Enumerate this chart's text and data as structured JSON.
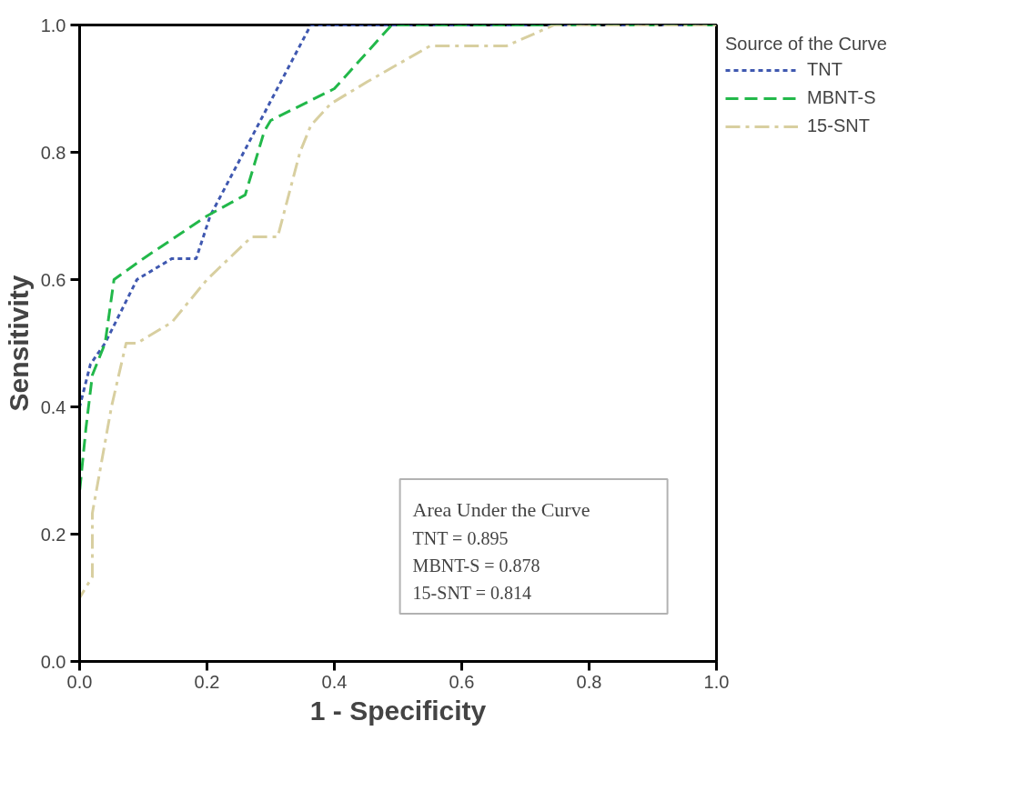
{
  "chart_data": {
    "type": "line",
    "xlabel": "1 - Specificity",
    "ylabel": "Sensitivity",
    "legend_title": "Source of the Curve",
    "xlim": [
      0,
      1
    ],
    "ylim": [
      0,
      1
    ],
    "xticks": [
      {
        "value": 0,
        "label": "0.0"
      },
      {
        "value": 0.2,
        "label": "0.2"
      },
      {
        "value": 0.4,
        "label": "0.4"
      },
      {
        "value": 0.6,
        "label": "0.6"
      },
      {
        "value": 0.8,
        "label": "0.8"
      },
      {
        "value": 1,
        "label": "1.0"
      }
    ],
    "yticks": [
      {
        "value": 0,
        "label": "0.0"
      },
      {
        "value": 0.2,
        "label": "0.2"
      },
      {
        "value": 0.4,
        "label": "0.4"
      },
      {
        "value": 0.6,
        "label": "0.6"
      },
      {
        "value": 0.8,
        "label": "0.8"
      },
      {
        "value": 1,
        "label": "1.0"
      }
    ],
    "grid": false,
    "legend": "right",
    "marker": "none",
    "series": [
      {
        "name": "TNT",
        "color": "#3f58b0",
        "line_style": "dotted",
        "x": [
          0,
          0,
          0.017,
          0.04,
          0.09,
          0.145,
          0.183,
          0.205,
          0.363,
          1
        ],
        "values": [
          0,
          0.4,
          0.467,
          0.5,
          0.6,
          0.633,
          0.633,
          0.7,
          1,
          1
        ]
      },
      {
        "name": "MBNT-S",
        "color": "#22b84a",
        "line_style": "dashed",
        "x": [
          0,
          0,
          0.01,
          0.02,
          0.04,
          0.054,
          0.1,
          0.2,
          0.26,
          0.29,
          0.3,
          0.4,
          0.49,
          1
        ],
        "values": [
          0,
          0.267,
          0.367,
          0.45,
          0.5,
          0.6,
          0.633,
          0.7,
          0.733,
          0.833,
          0.85,
          0.9,
          1,
          1
        ]
      },
      {
        "name": "15-SNT",
        "color": "#d8cfa0",
        "line_style": "dashdot",
        "x": [
          0,
          0,
          0.02,
          0.02,
          0.05,
          0.073,
          0.09,
          0.145,
          0.2,
          0.27,
          0.311,
          0.346,
          0.363,
          0.394,
          0.452,
          0.55,
          0.67,
          0.745,
          1
        ],
        "values": [
          0,
          0.1,
          0.133,
          0.233,
          0.4,
          0.5,
          0.5,
          0.533,
          0.6,
          0.667,
          0.667,
          0.8,
          0.842,
          0.876,
          0.911,
          0.967,
          0.967,
          1,
          1
        ]
      }
    ],
    "annotations": [
      "Area Under the Curve",
      "TNT = 0.895",
      "MBNT-S = 0.878",
      "15-SNT = 0.814"
    ]
  }
}
